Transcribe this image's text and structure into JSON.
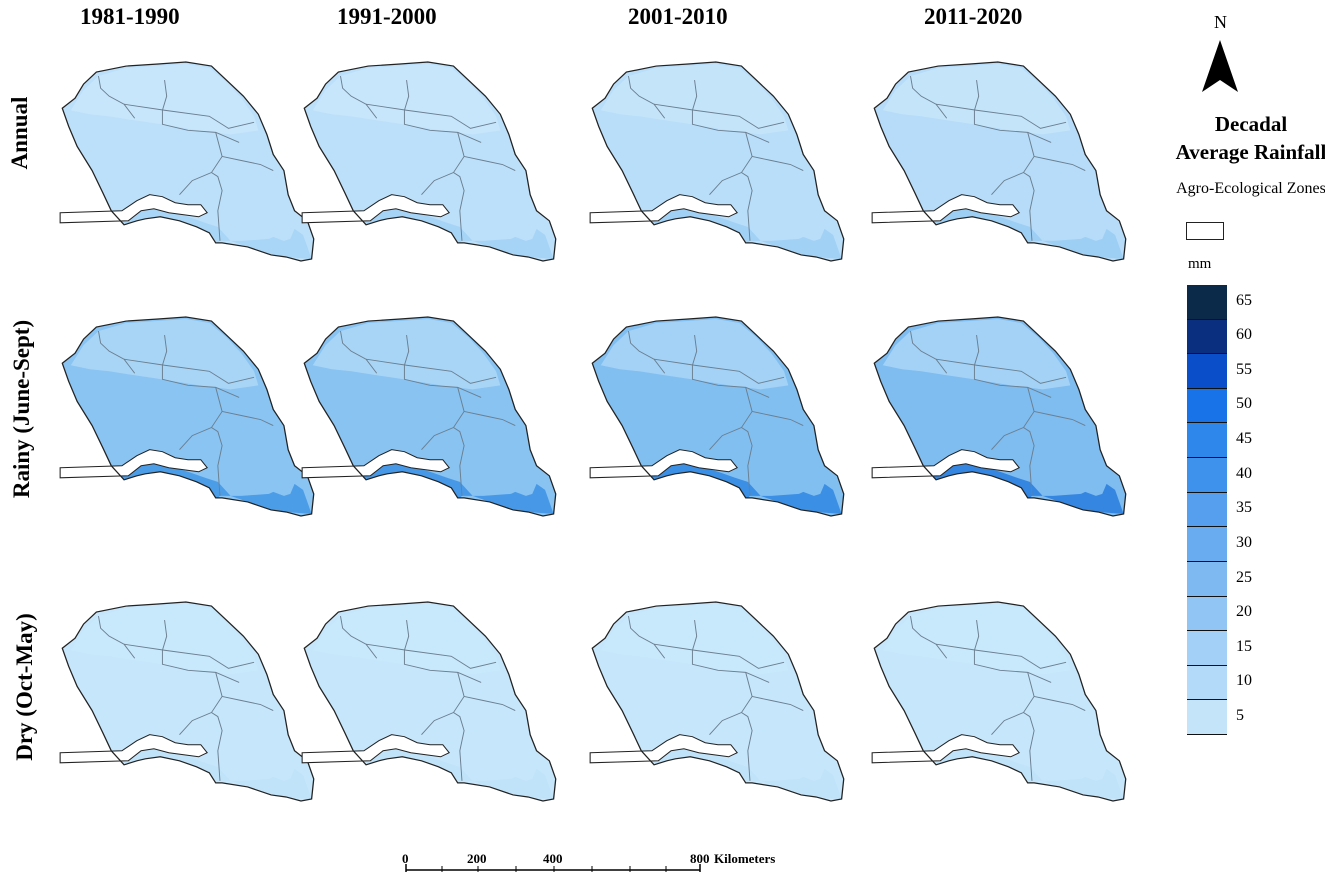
{
  "columns": [
    {
      "label": "1981-1990"
    },
    {
      "label": "1991-2000"
    },
    {
      "label": "2001-2010"
    },
    {
      "label": "2011-2020"
    }
  ],
  "rows": [
    {
      "label": "Annual",
      "maps": [
        {
          "north": "#c7e6fb",
          "middle": "#bde0fa",
          "south": "#a9d6f6"
        },
        {
          "north": "#c7e6fb",
          "middle": "#bde0fa",
          "south": "#a6d4f6"
        },
        {
          "north": "#c4e4fa",
          "middle": "#b9defa",
          "south": "#a1d1f5"
        },
        {
          "north": "#c4e4fa",
          "middle": "#b6dcf9",
          "south": "#9dcef4"
        }
      ]
    },
    {
      "label": "Rainy (June-Sept)",
      "maps": [
        {
          "north": "#a8d5f6",
          "middle": "#8ac4f2",
          "south": "#4c9de8"
        },
        {
          "north": "#a8d5f6",
          "middle": "#88c3f2",
          "south": "#4799e7"
        },
        {
          "north": "#a3d2f6",
          "middle": "#82bff1",
          "south": "#3b8fe4"
        },
        {
          "north": "#a3d2f6",
          "middle": "#7fbcf0",
          "south": "#3586e0"
        }
      ]
    },
    {
      "label": "Dry (Oct-May)",
      "maps": [
        {
          "north": "#c8e8fb",
          "middle": "#c6e6fb",
          "south": "#c1e3fa"
        },
        {
          "north": "#c8e8fb",
          "middle": "#c6e6fb",
          "south": "#c1e3fa"
        },
        {
          "north": "#c8e8fb",
          "middle": "#c6e6fb",
          "south": "#c1e3fa"
        },
        {
          "north": "#c8e8fb",
          "middle": "#c6e6fb",
          "south": "#c1e3fa"
        }
      ]
    }
  ],
  "legend": {
    "north": "N",
    "title_line1": "Decadal",
    "title_line2": "Average Rainfall",
    "zones_label": "Agro-Ecological Zones",
    "unit": "mm",
    "classes": [
      {
        "label": "65",
        "color": "#0b2a4a"
      },
      {
        "label": "60",
        "color": "#0a2f7e"
      },
      {
        "label": "55",
        "color": "#0a4fc9"
      },
      {
        "label": "50",
        "color": "#1872e8"
      },
      {
        "label": "45",
        "color": "#2e87ea"
      },
      {
        "label": "40",
        "color": "#3f92eb"
      },
      {
        "label": "35",
        "color": "#559fee"
      },
      {
        "label": "30",
        "color": "#6aacf0"
      },
      {
        "label": "25",
        "color": "#7eb9f2"
      },
      {
        "label": "20",
        "color": "#91c5f4"
      },
      {
        "label": "15",
        "color": "#a2d0f6"
      },
      {
        "label": "10",
        "color": "#b3daf8"
      },
      {
        "label": "5",
        "color": "#c4e4fa"
      }
    ]
  },
  "scale_bar": {
    "ticks": [
      "0",
      "200",
      "400",
      "800"
    ],
    "unit": "Kilometers"
  },
  "style": {
    "border": "#222222",
    "zone_line": "#6b7f90",
    "river_white": "#ffffff"
  }
}
